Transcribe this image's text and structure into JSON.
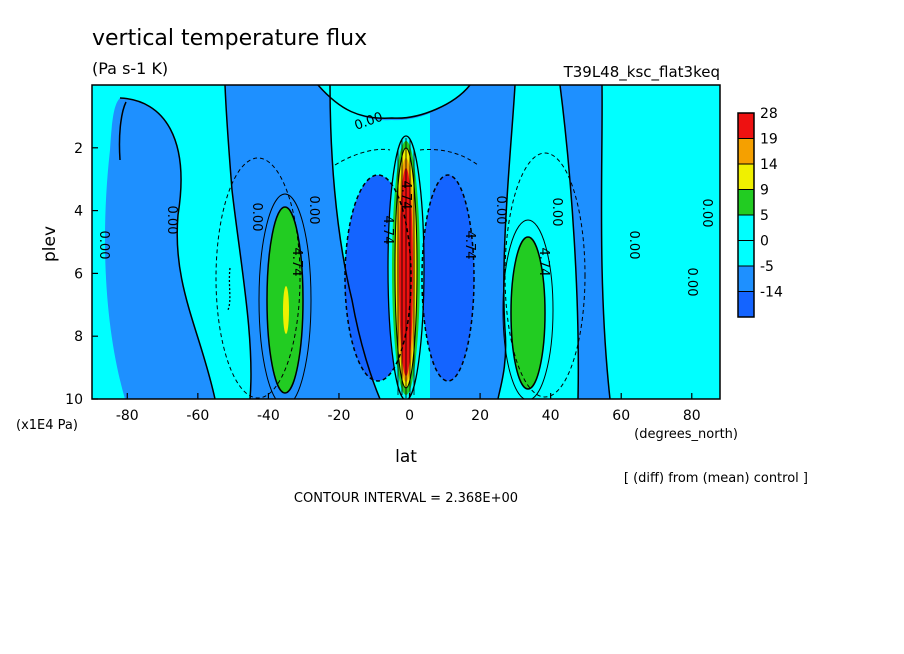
{
  "chart_data": {
    "type": "contour",
    "title": "vertical temperature flux",
    "units": "(Pa s-1 K)",
    "run_label": "T39L48_ksc_flat3keq",
    "xlabel": "lat",
    "xunits": "(degrees_north)",
    "ylabel": "plev",
    "yunits": "(x1E4 Pa)",
    "xlim": [
      -90,
      88
    ],
    "ylim": [
      10,
      0
    ],
    "x_ticks": [
      "-80",
      "-60",
      "-40",
      "-20",
      "0",
      "20",
      "40",
      "60",
      "80"
    ],
    "x_tick_values": [
      -80,
      -60,
      -40,
      -20,
      0,
      20,
      40,
      60,
      80
    ],
    "y_ticks": [
      "2",
      "4",
      "6",
      "8",
      "10"
    ],
    "y_tick_values": [
      2,
      4,
      6,
      8,
      10
    ],
    "colorbar": {
      "labels": [
        "28",
        "19",
        "14",
        "9",
        "5",
        "0",
        "-5",
        "-14"
      ],
      "colors": [
        "#ee1111",
        "#f5a000",
        "#f0f000",
        "#22cc22",
        "#00ffff",
        "#00ffff",
        "#1e90ff",
        "#1464ff"
      ]
    },
    "contour_labels": [
      "0.00",
      "0.00",
      "0.00",
      "0.00",
      "0.00",
      "0.00",
      "0.00",
      "0.00",
      "0.00",
      "0.00",
      "4.74",
      "4.74",
      "4.74",
      "4.74",
      "4.74"
    ],
    "contour_interval": "CONTOUR INTERVAL = 2.368E+00",
    "note": "[ (diff) from (mean) control ]"
  }
}
